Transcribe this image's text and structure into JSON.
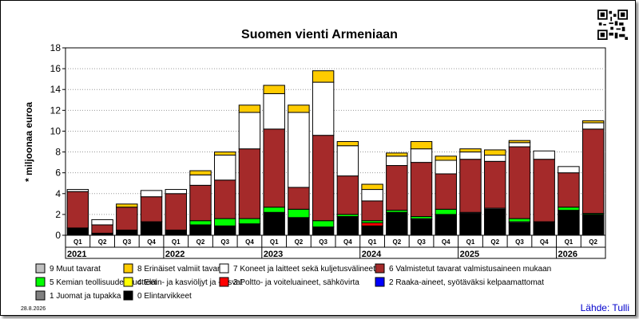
{
  "chart_data": {
    "type": "bar",
    "stacked": true,
    "title": "Suomen vienti Armeniaan",
    "ylabel": "* miljoonaa euroa",
    "ylim": [
      0,
      18
    ],
    "yticks": [
      0,
      2,
      4,
      6,
      8,
      10,
      12,
      14,
      16,
      18
    ],
    "grid": true,
    "categories": [
      "Q1",
      "Q2",
      "Q3",
      "Q4",
      "Q1",
      "Q2",
      "Q3",
      "Q4",
      "Q1",
      "Q2",
      "Q3",
      "Q4",
      "Q1",
      "Q2",
      "Q3",
      "Q4",
      "Q1",
      "Q2",
      "Q3",
      "Q4",
      "Q1",
      "Q2"
    ],
    "years": [
      {
        "label": "2021",
        "start": 0,
        "count": 4
      },
      {
        "label": "2022",
        "start": 4,
        "count": 4
      },
      {
        "label": "2023",
        "start": 8,
        "count": 4
      },
      {
        "label": "2024",
        "start": 12,
        "count": 4
      },
      {
        "label": "2025",
        "start": 16,
        "count": 4
      },
      {
        "label": "2026",
        "start": 20,
        "count": 2
      }
    ],
    "series": [
      {
        "name": "0 Elintarvikkeet",
        "color": "#000000",
        "values": [
          0.7,
          0.2,
          0.5,
          1.3,
          0.5,
          1.0,
          0.9,
          1.1,
          2.2,
          1.7,
          0.8,
          1.8,
          0.9,
          2.2,
          1.5,
          2.0,
          2.1,
          2.5,
          1.2,
          1.3,
          2.4,
          2.0
        ]
      },
      {
        "name": "1 Juomat ja tupakka",
        "color": "#808080",
        "values": [
          0,
          0,
          0,
          0,
          0,
          0,
          0,
          0,
          0,
          0,
          0,
          0,
          0,
          0,
          0.1,
          0,
          0.1,
          0.1,
          0.1,
          0,
          0,
          0
        ]
      },
      {
        "name": "2 Raaka-aineet, syötäväksi kelpaamattomat",
        "color": "#0000ff",
        "values": [
          0,
          0,
          0,
          0,
          0,
          0,
          0,
          0,
          0,
          0,
          0,
          0,
          0,
          0,
          0,
          0,
          0,
          0,
          0,
          0,
          0,
          0
        ]
      },
      {
        "name": "3 Poltto- ja voiteluaineet, sähkövirta",
        "color": "#ff0000",
        "values": [
          0,
          0,
          0,
          0,
          0,
          0,
          0,
          0,
          0,
          0,
          0,
          0,
          0.3,
          0,
          0,
          0,
          0,
          0,
          0,
          0,
          0,
          0
        ]
      },
      {
        "name": "5 Kemian teollisuuden tuotteet",
        "color": "#00ff00",
        "values": [
          0,
          0,
          0,
          0,
          0,
          0.4,
          0.7,
          0.5,
          0.5,
          0.8,
          0.6,
          0.2,
          0.2,
          0.2,
          0.2,
          0.5,
          0,
          0,
          0.3,
          0,
          0.3,
          0.1
        ]
      },
      {
        "name": "6 Valmistetut tavarat valmistusaineen mukaan",
        "color": "#a52a2a",
        "values": [
          3.5,
          0.8,
          2.2,
          2.4,
          3.5,
          3.4,
          3.7,
          6.7,
          7.5,
          2.1,
          8.2,
          3.7,
          1.9,
          4.3,
          5.2,
          3.4,
          5.1,
          4.5,
          6.9,
          6.0,
          3.3,
          8.1
        ]
      },
      {
        "name": "7 Koneet ja laitteet sekä kuljetusvälineet",
        "color": "#ffffff",
        "values": [
          0.2,
          0.5,
          0,
          0.6,
          0.4,
          1.0,
          2.4,
          3.5,
          3.4,
          7.2,
          5.1,
          2.9,
          1.1,
          0.9,
          1.3,
          1.3,
          0.7,
          0.6,
          0.4,
          0.8,
          0.6,
          0.6
        ]
      },
      {
        "name": "8 Erinäiset valmiit tavarat",
        "color": "#ffcc00",
        "values": [
          0,
          0,
          0.3,
          0,
          0,
          0.4,
          0.3,
          0.7,
          0.8,
          0.7,
          1.1,
          0.4,
          0.5,
          0.3,
          0.7,
          0.4,
          0.3,
          0.5,
          0.2,
          0,
          0,
          0.2
        ]
      },
      {
        "name": "9 Muut tavarat",
        "color": "#c0c0c0",
        "values": [
          0,
          0,
          0,
          0,
          0,
          0,
          0,
          0,
          0,
          0,
          0,
          0,
          0,
          0,
          0,
          0,
          0,
          0,
          0,
          0,
          0,
          0
        ]
      },
      {
        "name": "4 Eläin- ja kasviöljyt ja -rasvat",
        "color": "#ffff00",
        "values": [
          0,
          0,
          0,
          0,
          0,
          0,
          0,
          0,
          0,
          0,
          0,
          0,
          0,
          0,
          0,
          0,
          0,
          0,
          0,
          0,
          0,
          0
        ]
      }
    ],
    "legend": [
      [
        "9 Muut tavarat",
        "8 Erinäiset valmiit tavarat",
        "7 Koneet ja laitteet sekä kuljetusvälineet",
        "6 Valmistetut tavarat valmistusaineen mukaan"
      ],
      [
        "5 Kemian teollisuuden tuotteet",
        "4 Eläin- ja kasviöljyt ja -rasvat",
        "3 Poltto- ja voiteluaineet, sähkövirta",
        "2 Raaka-aineet, syötäväksi kelpaamattomat"
      ],
      [
        "1 Juomat ja tupakka",
        "0 Elintarvikkeet"
      ]
    ],
    "legend_position": "bottom"
  },
  "footer": {
    "date": "28.8.2026",
    "source": "Lähde: Tulli"
  },
  "icons": {
    "qr": "qr-code-icon"
  }
}
